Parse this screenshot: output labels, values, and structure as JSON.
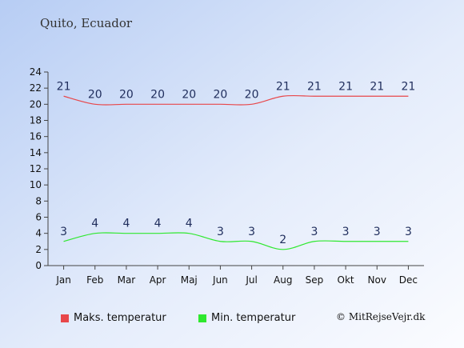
{
  "chart_data": {
    "type": "line",
    "title": "Quito, Ecuador",
    "categories": [
      "Jan",
      "Feb",
      "Mar",
      "Apr",
      "Maj",
      "Jun",
      "Jul",
      "Aug",
      "Sep",
      "Okt",
      "Nov",
      "Dec"
    ],
    "series": [
      {
        "name": "Maks. temperatur",
        "color": "#e8474a",
        "values": [
          21,
          20,
          20,
          20,
          20,
          20,
          20,
          21,
          21,
          21,
          21,
          21
        ]
      },
      {
        "name": "Min. temperatur",
        "color": "#2ee82e",
        "values": [
          3,
          4,
          4,
          4,
          4,
          3,
          3,
          2,
          3,
          3,
          3,
          3
        ]
      }
    ],
    "ylim": [
      0,
      24
    ],
    "yticks": [
      "0",
      "2",
      "4",
      "6",
      "8",
      "10",
      "12",
      "14",
      "16",
      "18",
      "20",
      "22",
      "24"
    ],
    "grid": false,
    "legend_position": "bottom-left",
    "data_labels": true
  },
  "copyright": "© MitRejseVejr.dk"
}
